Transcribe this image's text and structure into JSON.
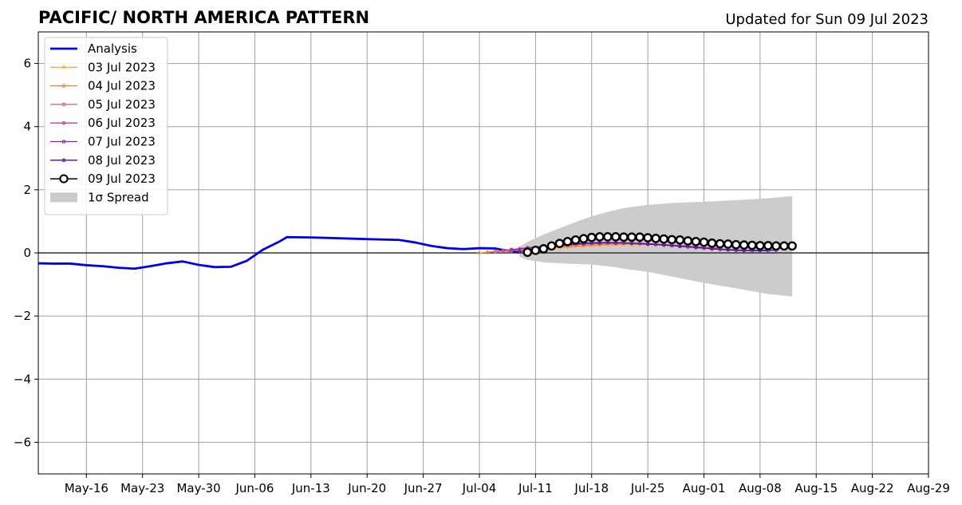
{
  "chart_data": {
    "type": "line",
    "title": "PACIFIC/ NORTH AMERICA PATTERN",
    "subtitle": "Updated for Sun 09 Jul 2023",
    "xlabel": "",
    "ylabel": "",
    "ylim": [
      -7,
      7
    ],
    "yticks": [
      -6,
      -4,
      -2,
      0,
      2,
      4,
      6
    ],
    "ytick_labels": [
      "−6",
      "−4",
      "−2",
      "0",
      "2",
      "4",
      "6"
    ],
    "xlim": [
      "2023-05-10",
      "2023-08-29"
    ],
    "xticks": [
      "2023-05-16",
      "2023-05-23",
      "2023-05-30",
      "2023-06-06",
      "2023-06-13",
      "2023-06-20",
      "2023-06-27",
      "2023-07-04",
      "2023-07-11",
      "2023-07-18",
      "2023-07-25",
      "2023-08-01",
      "2023-08-08",
      "2023-08-15",
      "2023-08-22",
      "2023-08-29"
    ],
    "xtick_labels": [
      "May-16",
      "May-23",
      "May-30",
      "Jun-06",
      "Jun-13",
      "Jun-20",
      "Jun-27",
      "Jul-04",
      "Jul-11",
      "Jul-18",
      "Jul-25",
      "Aug-01",
      "Aug-08",
      "Aug-15",
      "Aug-22",
      "Aug-29"
    ],
    "grid": true,
    "legend_position": "top-left",
    "series": [
      {
        "name": "Analysis",
        "color": "#0000ee",
        "style": "line",
        "points": [
          [
            "2023-05-10",
            -0.33
          ],
          [
            "2023-05-12",
            -0.34
          ],
          [
            "2023-05-14",
            -0.34
          ],
          [
            "2023-05-16",
            -0.39
          ],
          [
            "2023-05-18",
            -0.42
          ],
          [
            "2023-05-20",
            -0.47
          ],
          [
            "2023-05-22",
            -0.5
          ],
          [
            "2023-05-24",
            -0.42
          ],
          [
            "2023-05-26",
            -0.33
          ],
          [
            "2023-05-28",
            -0.27
          ],
          [
            "2023-05-30",
            -0.38
          ],
          [
            "2023-06-01",
            -0.45
          ],
          [
            "2023-06-03",
            -0.44
          ],
          [
            "2023-06-05",
            -0.25
          ],
          [
            "2023-06-07",
            0.1
          ],
          [
            "2023-06-09",
            0.35
          ],
          [
            "2023-06-10",
            0.5
          ],
          [
            "2023-06-13",
            0.49
          ],
          [
            "2023-06-17",
            0.46
          ],
          [
            "2023-06-21",
            0.43
          ],
          [
            "2023-06-24",
            0.41
          ],
          [
            "2023-06-26",
            0.33
          ],
          [
            "2023-06-28",
            0.22
          ],
          [
            "2023-06-30",
            0.15
          ],
          [
            "2023-07-02",
            0.12
          ],
          [
            "2023-07-04",
            0.15
          ],
          [
            "2023-07-06",
            0.14
          ],
          [
            "2023-07-07",
            0.09
          ],
          [
            "2023-07-08",
            0.06
          ],
          [
            "2023-07-09",
            0.02
          ]
        ]
      },
      {
        "name": "03 Jul 2023",
        "color": "#f5b041",
        "style": "marker-line",
        "points": [
          [
            "2023-07-04",
            0.0
          ],
          [
            "2023-07-06",
            0.05
          ],
          [
            "2023-07-08",
            0.08
          ],
          [
            "2023-07-10",
            0.1
          ],
          [
            "2023-07-12",
            0.13
          ],
          [
            "2023-07-14",
            0.17
          ],
          [
            "2023-07-16",
            0.2
          ],
          [
            "2023-07-18",
            0.22
          ],
          [
            "2023-07-20",
            0.25
          ],
          [
            "2023-07-22",
            0.26
          ],
          [
            "2023-07-24",
            0.27
          ],
          [
            "2023-07-26",
            0.26
          ],
          [
            "2023-07-28",
            0.24
          ],
          [
            "2023-07-30",
            0.22
          ],
          [
            "2023-08-01",
            0.19
          ]
        ]
      },
      {
        "name": "04 Jul 2023",
        "color": "#eb7f3a",
        "style": "marker-line",
        "points": [
          [
            "2023-07-05",
            0.02
          ],
          [
            "2023-07-07",
            0.06
          ],
          [
            "2023-07-09",
            0.1
          ],
          [
            "2023-07-11",
            0.13
          ],
          [
            "2023-07-13",
            0.17
          ],
          [
            "2023-07-15",
            0.2
          ],
          [
            "2023-07-17",
            0.23
          ],
          [
            "2023-07-19",
            0.26
          ],
          [
            "2023-07-21",
            0.28
          ],
          [
            "2023-07-23",
            0.28
          ],
          [
            "2023-07-25",
            0.27
          ],
          [
            "2023-07-27",
            0.25
          ],
          [
            "2023-07-29",
            0.22
          ],
          [
            "2023-07-31",
            0.19
          ],
          [
            "2023-08-02",
            0.16
          ]
        ]
      },
      {
        "name": "05 Jul 2023",
        "color": "#e05a75",
        "style": "marker-line",
        "points": [
          [
            "2023-07-06",
            0.04
          ],
          [
            "2023-07-08",
            0.1
          ],
          [
            "2023-07-10",
            0.14
          ],
          [
            "2023-07-12",
            0.18
          ],
          [
            "2023-07-14",
            0.22
          ],
          [
            "2023-07-16",
            0.26
          ],
          [
            "2023-07-18",
            0.29
          ],
          [
            "2023-07-20",
            0.31
          ],
          [
            "2023-07-22",
            0.31
          ],
          [
            "2023-07-24",
            0.3
          ],
          [
            "2023-07-26",
            0.28
          ],
          [
            "2023-07-28",
            0.25
          ],
          [
            "2023-07-30",
            0.22
          ],
          [
            "2023-08-01",
            0.18
          ],
          [
            "2023-08-03",
            0.15
          ]
        ]
      },
      {
        "name": "06 Jul 2023",
        "color": "#c0409a",
        "style": "marker-line",
        "points": [
          [
            "2023-07-07",
            0.08
          ],
          [
            "2023-07-09",
            0.13
          ],
          [
            "2023-07-11",
            0.17
          ],
          [
            "2023-07-13",
            0.22
          ],
          [
            "2023-07-15",
            0.26
          ],
          [
            "2023-07-17",
            0.29
          ],
          [
            "2023-07-19",
            0.31
          ],
          [
            "2023-07-21",
            0.32
          ],
          [
            "2023-07-23",
            0.31
          ],
          [
            "2023-07-25",
            0.29
          ],
          [
            "2023-07-27",
            0.26
          ],
          [
            "2023-07-29",
            0.22
          ],
          [
            "2023-07-31",
            0.18
          ],
          [
            "2023-08-02",
            0.14
          ],
          [
            "2023-08-04",
            0.11
          ],
          [
            "2023-08-06",
            0.08
          ]
        ]
      },
      {
        "name": "07 Jul 2023",
        "color": "#8e1ea8",
        "style": "marker-line",
        "points": [
          [
            "2023-07-08",
            0.1
          ],
          [
            "2023-07-10",
            0.16
          ],
          [
            "2023-07-12",
            0.21
          ],
          [
            "2023-07-14",
            0.26
          ],
          [
            "2023-07-16",
            0.3
          ],
          [
            "2023-07-18",
            0.32
          ],
          [
            "2023-07-20",
            0.33
          ],
          [
            "2023-07-22",
            0.32
          ],
          [
            "2023-07-24",
            0.3
          ],
          [
            "2023-07-26",
            0.27
          ],
          [
            "2023-07-28",
            0.23
          ],
          [
            "2023-07-30",
            0.19
          ],
          [
            "2023-08-01",
            0.15
          ],
          [
            "2023-08-03",
            0.11
          ],
          [
            "2023-08-05",
            0.08
          ],
          [
            "2023-08-07",
            0.07
          ],
          [
            "2023-08-09",
            0.07
          ]
        ]
      },
      {
        "name": "08 Jul 2023",
        "color": "#4b0fa0",
        "style": "marker-line",
        "points": [
          [
            "2023-07-09",
            0.04
          ],
          [
            "2023-07-11",
            0.12
          ],
          [
            "2023-07-13",
            0.2
          ],
          [
            "2023-07-15",
            0.26
          ],
          [
            "2023-07-17",
            0.3
          ],
          [
            "2023-07-19",
            0.32
          ],
          [
            "2023-07-21",
            0.32
          ],
          [
            "2023-07-23",
            0.31
          ],
          [
            "2023-07-25",
            0.28
          ],
          [
            "2023-07-27",
            0.25
          ],
          [
            "2023-07-29",
            0.21
          ],
          [
            "2023-07-31",
            0.17
          ],
          [
            "2023-08-02",
            0.13
          ],
          [
            "2023-08-04",
            0.1
          ],
          [
            "2023-08-06",
            0.08
          ],
          [
            "2023-08-08",
            0.08
          ],
          [
            "2023-08-10",
            0.09
          ]
        ]
      },
      {
        "name": "09 Jul 2023",
        "color": "#000000",
        "style": "open-circle-line",
        "points": [
          [
            "2023-07-10",
            0.02
          ],
          [
            "2023-07-11",
            0.08
          ],
          [
            "2023-07-12",
            0.13
          ],
          [
            "2023-07-13",
            0.22
          ],
          [
            "2023-07-14",
            0.3
          ],
          [
            "2023-07-15",
            0.36
          ],
          [
            "2023-07-16",
            0.41
          ],
          [
            "2023-07-17",
            0.45
          ],
          [
            "2023-07-18",
            0.49
          ],
          [
            "2023-07-19",
            0.51
          ],
          [
            "2023-07-20",
            0.51
          ],
          [
            "2023-07-21",
            0.51
          ],
          [
            "2023-07-22",
            0.5
          ],
          [
            "2023-07-23",
            0.5
          ],
          [
            "2023-07-24",
            0.5
          ],
          [
            "2023-07-25",
            0.48
          ],
          [
            "2023-07-26",
            0.46
          ],
          [
            "2023-07-27",
            0.44
          ],
          [
            "2023-07-28",
            0.42
          ],
          [
            "2023-07-29",
            0.41
          ],
          [
            "2023-07-30",
            0.38
          ],
          [
            "2023-07-31",
            0.36
          ],
          [
            "2023-08-01",
            0.34
          ],
          [
            "2023-08-02",
            0.31
          ],
          [
            "2023-08-03",
            0.29
          ],
          [
            "2023-08-04",
            0.28
          ],
          [
            "2023-08-05",
            0.26
          ],
          [
            "2023-08-06",
            0.25
          ],
          [
            "2023-08-07",
            0.24
          ],
          [
            "2023-08-08",
            0.23
          ],
          [
            "2023-08-09",
            0.23
          ],
          [
            "2023-08-10",
            0.22
          ],
          [
            "2023-08-11",
            0.22
          ],
          [
            "2023-08-12",
            0.22
          ]
        ]
      }
    ],
    "spread": {
      "name": "1σ Spread",
      "color": "#cccccc",
      "upper": [
        [
          "2023-07-09",
          0.2
        ],
        [
          "2023-07-10",
          0.35
        ],
        [
          "2023-07-12",
          0.58
        ],
        [
          "2023-07-14",
          0.78
        ],
        [
          "2023-07-16",
          0.98
        ],
        [
          "2023-07-18",
          1.16
        ],
        [
          "2023-07-20",
          1.3
        ],
        [
          "2023-07-22",
          1.42
        ],
        [
          "2023-07-25",
          1.52
        ],
        [
          "2023-07-28",
          1.58
        ],
        [
          "2023-08-01",
          1.62
        ],
        [
          "2023-08-05",
          1.67
        ],
        [
          "2023-08-09",
          1.73
        ],
        [
          "2023-08-12",
          1.8
        ]
      ],
      "lower": [
        [
          "2023-07-09",
          -0.12
        ],
        [
          "2023-07-10",
          -0.22
        ],
        [
          "2023-07-12",
          -0.3
        ],
        [
          "2023-07-14",
          -0.33
        ],
        [
          "2023-07-16",
          -0.35
        ],
        [
          "2023-07-18",
          -0.37
        ],
        [
          "2023-07-20",
          -0.42
        ],
        [
          "2023-07-22",
          -0.5
        ],
        [
          "2023-07-25",
          -0.6
        ],
        [
          "2023-07-28",
          -0.75
        ],
        [
          "2023-08-01",
          -0.95
        ],
        [
          "2023-08-05",
          -1.12
        ],
        [
          "2023-08-09",
          -1.3
        ],
        [
          "2023-08-12",
          -1.38
        ]
      ]
    }
  }
}
